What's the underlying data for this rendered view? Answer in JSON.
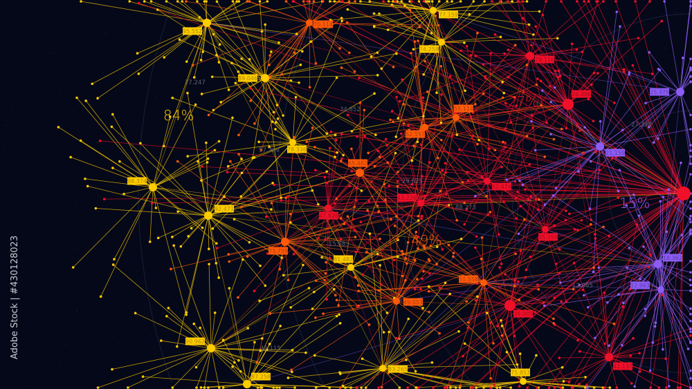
{
  "background_color": "#050818",
  "colors": {
    "yellow": "#ffcc00",
    "orange": "#ff5a0a",
    "red": "#f0102a",
    "purple": "#8c5cf5",
    "grid": "#1a2740"
  },
  "hubs": [
    {
      "label": "95.552",
      "color": "yellow"
    },
    {
      "label": "89.046",
      "color": "yellow"
    },
    {
      "label": "78.336",
      "color": "yellow"
    },
    {
      "label": "98.374",
      "color": "yellow"
    },
    {
      "label": "92.471",
      "color": "yellow"
    },
    {
      "label": "81.482",
      "color": "yellow"
    },
    {
      "label": "90.962",
      "color": "yellow"
    },
    {
      "label": "87.258",
      "color": "yellow"
    },
    {
      "label": "83.265",
      "color": "yellow"
    },
    {
      "label": "75.853",
      "color": "yellow"
    },
    {
      "label": "77.159",
      "color": "yellow"
    },
    {
      "label": "74.258",
      "color": "yellow"
    },
    {
      "label": "70.114",
      "color": "orange"
    },
    {
      "label": "65.482",
      "color": "orange"
    },
    {
      "label": "73.759",
      "color": "orange"
    },
    {
      "label": "62.557",
      "color": "orange"
    },
    {
      "label": "55.114",
      "color": "orange"
    },
    {
      "label": "51.558",
      "color": "orange"
    },
    {
      "label": "49.053",
      "color": "orange"
    },
    {
      "label": "29.116",
      "color": "red"
    },
    {
      "label": "26.396",
      "color": "red"
    },
    {
      "label": "47.826",
      "color": "red"
    },
    {
      "label": "43.226",
      "color": "red"
    },
    {
      "label": "52.474",
      "color": "red"
    },
    {
      "label": "35.159",
      "color": "red"
    },
    {
      "label": "38.005",
      "color": "red"
    },
    {
      "label": "41.137",
      "color": "red"
    },
    {
      "label": "",
      "color": "red"
    },
    {
      "label": "25.379",
      "color": "purple"
    },
    {
      "label": "21.159",
      "color": "purple"
    },
    {
      "label": "18.362",
      "color": "purple"
    },
    {
      "label": "12.963",
      "color": "purple"
    }
  ],
  "percentages": [
    {
      "text": "84%",
      "color": "yellow"
    },
    {
      "text": "27%",
      "color": "red"
    },
    {
      "text": "49%",
      "color": "orange"
    },
    {
      "text": "15%",
      "color": "purple"
    }
  ],
  "gray_numbers": [
    "77.247",
    "34.852",
    "57.264",
    "29.625",
    "88.273",
    "15.683",
    "12.065",
    "27.398",
    "45.115"
  ],
  "watermark": "Adobe Stock | #430128023"
}
